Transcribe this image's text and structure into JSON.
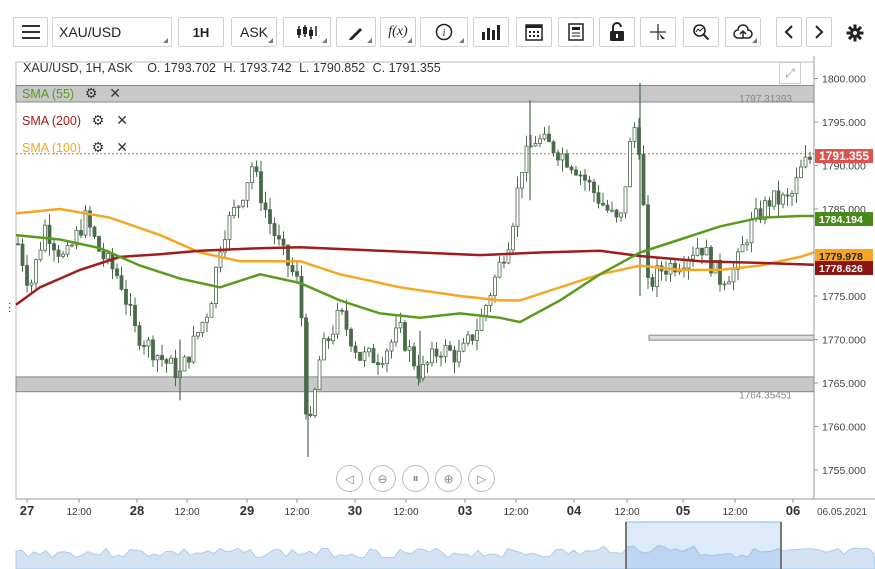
{
  "toolbar": {
    "menu_icon": "hamburger-icon",
    "symbol": "XAU/USD",
    "timeframe": "1H",
    "price_type": "ASK",
    "tools": [
      "chart-type-icon",
      "draw-icon",
      "indicator-fx-icon",
      "info-icon",
      "volume-bars-icon",
      "calendar-icon",
      "news-icon",
      "lock-icon",
      "crosshair-icon",
      "zoom-icon",
      "upload-icon",
      "prev-icon",
      "next-icon",
      "settings-icon"
    ]
  },
  "header": {
    "pair": "XAU/USD, 1H, ASK",
    "open": "O. 1793.702",
    "high": "H. 1793.742",
    "low": "L. 1790.852",
    "close": "C. 1791.355"
  },
  "legend": [
    {
      "label": "SMA (55)",
      "color": "#5a9b1e"
    },
    {
      "label": "SMA (200)",
      "color": "#a01c1c"
    },
    {
      "label": "SMA (100)",
      "color": "#f5a623"
    }
  ],
  "chart_data": {
    "type": "candlestick",
    "ylim": [
      1752,
      1803
    ],
    "y_ticks": [
      "1755.000",
      "1760.000",
      "1765.000",
      "1770.000",
      "1775.000",
      "1780.000",
      "1785.000",
      "1790.000",
      "1795.000",
      "1800.000"
    ],
    "x_labels": [
      "27",
      "12:00",
      "28",
      "12:00",
      "29",
      "12:00",
      "30",
      "12:00",
      "03",
      "12:00",
      "04",
      "12:00",
      "05",
      "12:00",
      "06"
    ],
    "date_label": "06.05.2021",
    "price_tags": [
      {
        "value": 1791.355,
        "label": "1791.355",
        "color": "#d9534f"
      },
      {
        "value": 1784.194,
        "label": "1784.194",
        "color": "#4a8a1a"
      },
      {
        "value": 1779.978,
        "label": "1779.978",
        "color": "#f5a623"
      },
      {
        "value": 1778.626,
        "label": "1778.626",
        "color": "#8b1414"
      }
    ],
    "bands": [
      {
        "label": "1797.31393",
        "value": 1797.314
      },
      {
        "label": "1764.35451",
        "value": 1764.355
      }
    ],
    "candle_color": "#4a6a4a"
  },
  "zoom_controls": [
    "scroll-left-icon",
    "zoom-out-icon",
    "reset-icon",
    "zoom-in-icon",
    "scroll-right-icon"
  ]
}
